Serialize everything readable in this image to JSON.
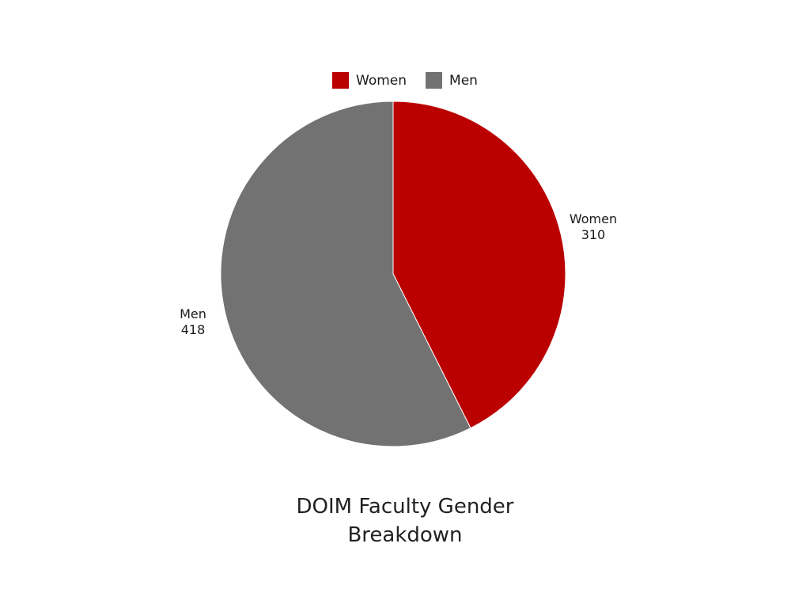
{
  "chart_data": {
    "type": "pie",
    "title_lines": [
      "DOIM Faculty Gender",
      "Breakdown"
    ],
    "categories": [
      "Women",
      "Men"
    ],
    "values": [
      310,
      418
    ],
    "colors": [
      "#bb0000",
      "#717271"
    ],
    "legend": {
      "position": "top",
      "entries": [
        "Women",
        "Men"
      ]
    },
    "data_labels": [
      {
        "name": "Women",
        "value": "310"
      },
      {
        "name": "Men",
        "value": "418"
      }
    ],
    "start_angle": "top, clockwise"
  }
}
